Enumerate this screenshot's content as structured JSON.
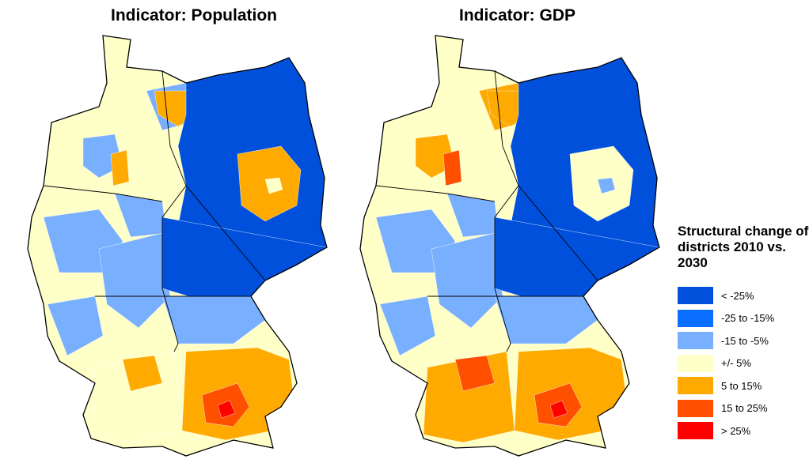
{
  "maps": [
    {
      "title": "Indicator: Population",
      "regions": {
        "base": 3,
        "ne": 0,
        "berlin_ring": 4,
        "berlin": 3,
        "thuringia_saxony": 0,
        "lower_saxony_blobs": 2,
        "hamburg": 4,
        "west_blue": 2,
        "hesse": 2,
        "bavaria_north": 2,
        "bavaria_south": 4,
        "munich": 5,
        "munich_core": 6,
        "bw": 3,
        "stuttgart": 4,
        "nrw": 3,
        "rhine": 2,
        "bremen_area": 4
      }
    },
    {
      "title": "Indicator: GDP",
      "regions": {
        "base": 3,
        "ne": 0,
        "berlin_ring": 3,
        "berlin": 2,
        "thuringia_saxony": 0,
        "lower_saxony_blobs": 4,
        "hamburg": 4,
        "west_blue": 2,
        "hesse": 2,
        "bavaria_north": 2,
        "bavaria_south": 4,
        "munich": 5,
        "munich_core": 6,
        "bw": 4,
        "stuttgart": 5,
        "nrw": 4,
        "rhine": 2,
        "bremen_area": 5
      }
    }
  ],
  "legend": {
    "title": "Structural change of districts 2010 vs. 2030",
    "items": [
      {
        "label": "< -25%",
        "color": "#0050DC"
      },
      {
        "label": "-25 to -15%",
        "color": "#0A6EFF"
      },
      {
        "label": "-15 to -5%",
        "color": "#78AFFF"
      },
      {
        "label": "+/- 5%",
        "color": "#FFFFC8"
      },
      {
        "label": "5 to 15%",
        "color": "#FFAA00"
      },
      {
        "label": "15 to 25%",
        "color": "#FF5000"
      },
      {
        "label": "> 25%",
        "color": "#FF0000"
      }
    ]
  }
}
